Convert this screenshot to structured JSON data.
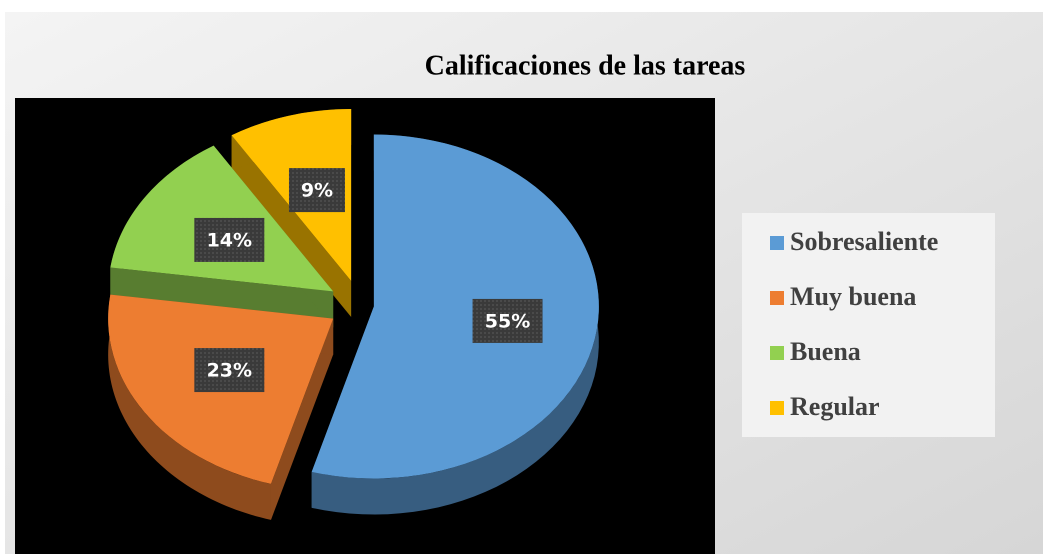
{
  "chart_data": {
    "type": "pie",
    "title": "Calificaciones de las tareas",
    "categories": [
      "Sobresaliente",
      "Muy buena",
      "Buena",
      "Regular"
    ],
    "values": [
      55,
      23,
      14,
      9
    ],
    "value_labels": [
      "55%",
      "23%",
      "14%",
      "9%"
    ],
    "colors": [
      "#5b9bd5",
      "#ed7d31",
      "#92d050",
      "#ffc000"
    ],
    "legend": "right"
  }
}
